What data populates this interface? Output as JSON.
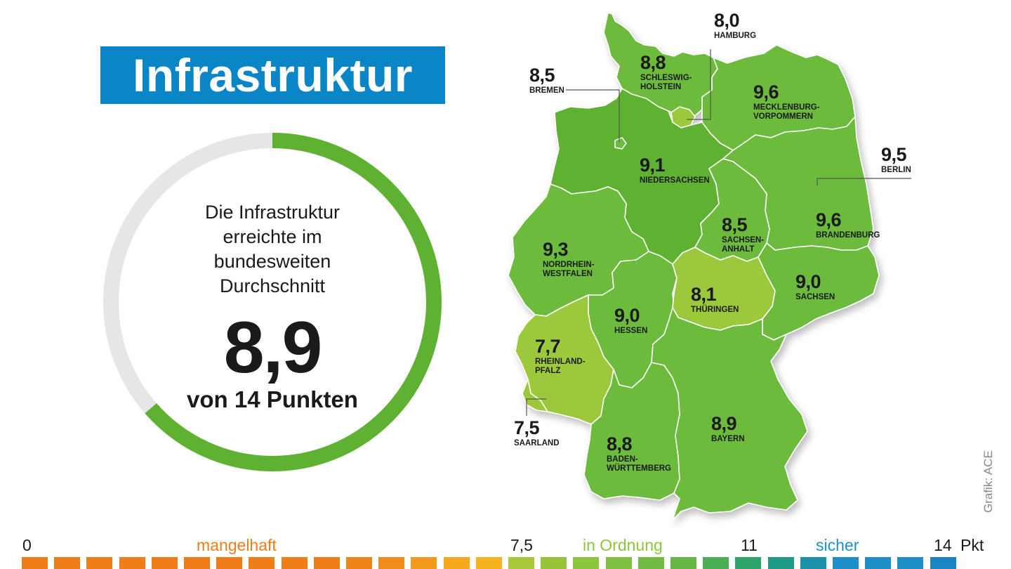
{
  "title": "Infrastruktur",
  "gauge": {
    "description": "Die Infrastruktur erreichte im bundesweiten Durchschnitt",
    "description_lines": [
      "Die Infrastruktur",
      "erreichte im",
      "bundesweiten",
      "Durchschnitt"
    ],
    "value": "8,9",
    "value_numeric": 8.9,
    "max_numeric": 14,
    "max_label": "von 14 Punkten",
    "fill_color": "#5eb131",
    "track_color": "#e6e6e6"
  },
  "regions": [
    {
      "name": "HAMBURG",
      "value": "8,0"
    },
    {
      "name": "SCHLESWIG-HOLSTEIN",
      "name_lines": [
        "SCHLESWIG-",
        "HOLSTEIN"
      ],
      "value": "8,8"
    },
    {
      "name": "BREMEN",
      "value": "8,5"
    },
    {
      "name": "MECKLENBURG-VORPOMMERN",
      "name_lines": [
        "MECKLENBURG-",
        "VORPOMMERN"
      ],
      "value": "9,6"
    },
    {
      "name": "BERLIN",
      "value": "9,5"
    },
    {
      "name": "NIEDERSACHSEN",
      "value": "9,1"
    },
    {
      "name": "SACHSEN-ANHALT",
      "name_lines": [
        "SACHSEN-",
        "ANHALT"
      ],
      "value": "8,5"
    },
    {
      "name": "BRANDENBURG",
      "value": "9,6"
    },
    {
      "name": "NORDRHEIN-WESTFALEN",
      "name_lines": [
        "NORDRHEIN-",
        "WESTFALEN"
      ],
      "value": "9,3"
    },
    {
      "name": "THÜRINGEN",
      "value": "8,1"
    },
    {
      "name": "SACHSEN",
      "value": "9,0"
    },
    {
      "name": "HESSEN",
      "value": "9,0"
    },
    {
      "name": "RHEINLAND-PFALZ",
      "name_lines": [
        "RHEINLAND-",
        "PFALZ"
      ],
      "value": "7,7"
    },
    {
      "name": "SAARLAND",
      "value": "7,5"
    },
    {
      "name": "BADEN-WÜRTTEMBERG",
      "name_lines": [
        "BADEN-",
        "WÜRTTEMBERG"
      ],
      "value": "8,8"
    },
    {
      "name": "BAYERN",
      "value": "8,9"
    }
  ],
  "legend": {
    "start": "0",
    "poor": "mangelhaft",
    "threshold_mid": "7,5",
    "ok": "in Ordnung",
    "threshold_high": "11",
    "safe": "sicher",
    "end": "14",
    "unit": "Pkt",
    "poor_color": "#ef7d1a",
    "ok_color": "#8cc63f",
    "safe_color": "#1f8fc9"
  },
  "credit": "Grafik: ACE"
}
